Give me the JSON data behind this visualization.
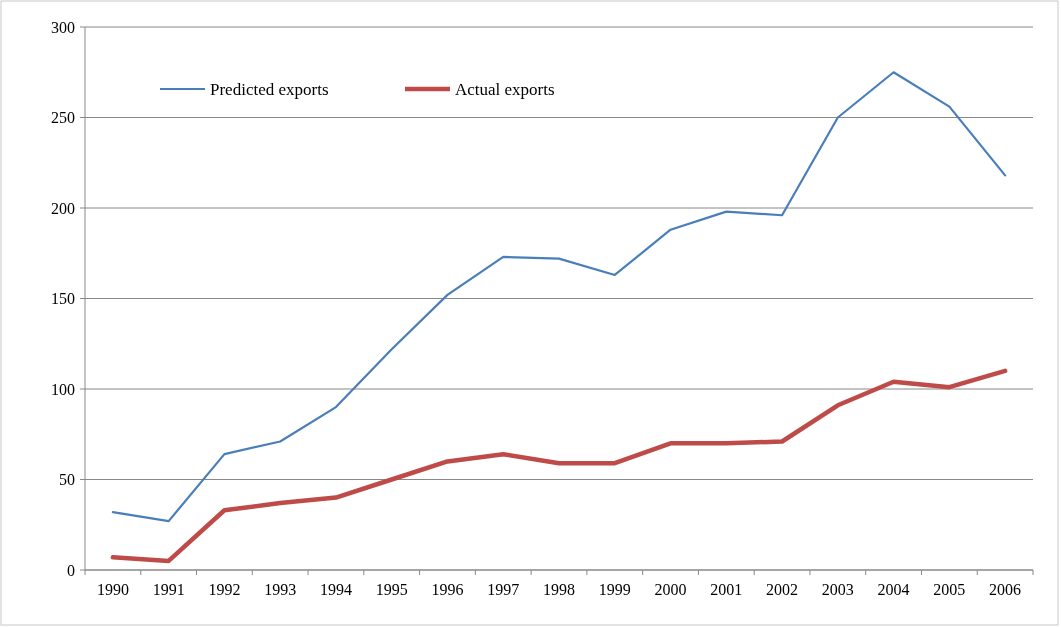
{
  "chart_data": {
    "type": "line",
    "categories": [
      "1990",
      "1991",
      "1992",
      "1993",
      "1994",
      "1995",
      "1996",
      "1997",
      "1998",
      "1999",
      "2000",
      "2001",
      "2002",
      "2003",
      "2004",
      "2005",
      "2006"
    ],
    "series": [
      {
        "name": "Predicted exports",
        "color": "#4a7ebb",
        "values": [
          32,
          27,
          64,
          71,
          90,
          122,
          152,
          173,
          172,
          163,
          188,
          198,
          196,
          250,
          275,
          256,
          218
        ]
      },
      {
        "name": "Actual exports",
        "color": "#be4b48",
        "values": [
          7,
          5,
          33,
          37,
          40,
          50,
          60,
          64,
          59,
          59,
          70,
          70,
          71,
          91,
          104,
          101,
          110
        ]
      }
    ],
    "ylim": [
      0,
      300
    ],
    "yticks": [
      0,
      50,
      100,
      150,
      200,
      250,
      300
    ],
    "grid": "y",
    "legend": "top left",
    "marker": "none",
    "line_style": "solid"
  }
}
